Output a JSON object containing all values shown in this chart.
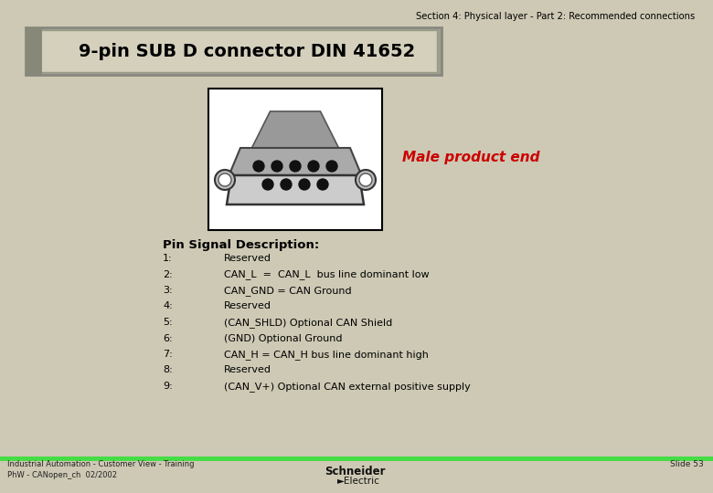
{
  "bg_color": "#cdc9b4",
  "header_text": "Section 4: Physical layer - Part 2: Recommended connections",
  "title_box_text": "9-pin SUB D connector DIN 41652",
  "male_product_end_text": "Male product end",
  "pin_header": "Pin Signal Description:",
  "pins": [
    {
      "num": "1:",
      "desc": "Reserved"
    },
    {
      "num": "2:",
      "desc": "CAN_L  =  CAN_L  bus line dominant low"
    },
    {
      "num": "3:",
      "desc": "CAN_GND = CAN Ground"
    },
    {
      "num": "4:",
      "desc": "Reserved"
    },
    {
      "num": "5:",
      "desc": "(CAN_SHLD) Optional CAN Shield"
    },
    {
      "num": "6:",
      "desc": "(GND) Optional Ground"
    },
    {
      "num": "7:",
      "desc": "CAN_H = CAN_H bus line dominant high"
    },
    {
      "num": "8:",
      "desc": "Reserved"
    },
    {
      "num": "9:",
      "desc": "(CAN_V+) Optional CAN external positive supply"
    }
  ],
  "footer_left1": "Industrial Automation - Customer View - Training",
  "footer_left2": "PhW - CANopen_ch  02/2002",
  "footer_right": "Slide 53",
  "green_line_color": "#44dd44",
  "title_color": "#000000",
  "header_color": "#000000",
  "male_text_color": "#cc0000",
  "connector_bg": "#ffffff",
  "connector_border": "#000000"
}
